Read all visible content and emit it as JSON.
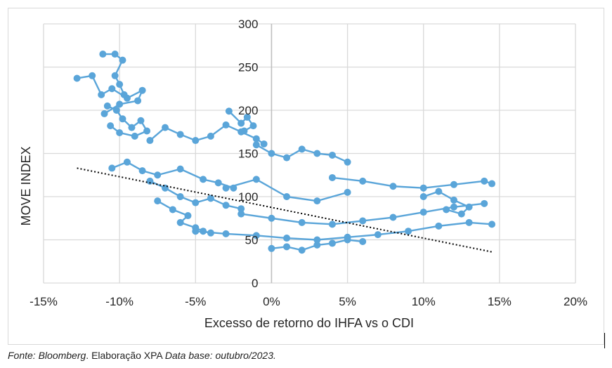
{
  "caption": {
    "source": "Fonte: Bloomberg",
    "dot": ".",
    "middle": " Elaboração XPA ",
    "date": "Data base: outubro/2023."
  },
  "chart_data": {
    "type": "scatter",
    "xlabel": "Excesso de retorno do IHFA vs o CDI",
    "ylabel": "MOVE INDEX",
    "xlim": [
      -0.15,
      0.2
    ],
    "ylim": [
      0,
      300
    ],
    "x_ticks": [
      -0.15,
      -0.1,
      -0.05,
      0,
      0.05,
      0.1,
      0.15,
      0.2
    ],
    "x_tick_labels": [
      "-15%",
      "-10%",
      "-5%",
      "0%",
      "5%",
      "10%",
      "15%",
      "20%"
    ],
    "y_ticks": [
      0,
      50,
      100,
      150,
      200,
      250,
      300
    ],
    "y_tick_labels": [
      "0",
      "50",
      "100",
      "150",
      "200",
      "250",
      "300"
    ],
    "grid": true,
    "color": "#5aa5d9",
    "line_connected": true,
    "trendline": {
      "type": "linear",
      "style": "dotted",
      "color": "#000000",
      "x": [
        -0.128,
        0.145
      ],
      "y": [
        133,
        36
      ]
    },
    "clusters": [
      {
        "x": [
          -0.128,
          -0.118,
          -0.112,
          -0.105,
          -0.095,
          -0.085,
          -0.088,
          -0.1,
          -0.11
        ],
        "y": [
          237,
          240,
          218,
          225,
          214,
          223,
          211,
          207,
          196
        ]
      },
      {
        "x": [
          -0.111,
          -0.103,
          -0.098,
          -0.103,
          -0.1,
          -0.097
        ],
        "y": [
          265,
          265,
          258,
          240,
          230,
          218
        ]
      },
      {
        "x": [
          -0.108,
          -0.102,
          -0.098,
          -0.092,
          -0.086,
          -0.082,
          -0.09,
          -0.1,
          -0.106
        ],
        "y": [
          205,
          200,
          190,
          180,
          188,
          176,
          170,
          174,
          182
        ]
      },
      {
        "x": [
          -0.08,
          -0.07,
          -0.06,
          -0.05,
          -0.04,
          -0.03,
          -0.02,
          -0.01,
          -0.005
        ],
        "y": [
          165,
          180,
          172,
          165,
          170,
          183,
          175,
          167,
          161
        ]
      },
      {
        "x": [
          -0.028,
          -0.02,
          -0.016,
          -0.012,
          -0.018
        ],
        "y": [
          199,
          185,
          192,
          182,
          176
        ]
      },
      {
        "x": [
          -0.105,
          -0.095,
          -0.085,
          -0.075,
          -0.06,
          -0.045,
          -0.035,
          -0.025
        ],
        "y": [
          133,
          140,
          130,
          125,
          132,
          120,
          116,
          110
        ]
      },
      {
        "x": [
          -0.08,
          -0.07,
          -0.06,
          -0.05,
          -0.04,
          -0.03,
          -0.02
        ],
        "y": [
          118,
          110,
          100,
          93,
          98,
          90,
          86
        ]
      },
      {
        "x": [
          -0.075,
          -0.065,
          -0.055,
          -0.06,
          -0.05,
          -0.045,
          -0.04
        ],
        "y": [
          95,
          85,
          78,
          70,
          64,
          60,
          58
        ]
      },
      {
        "x": [
          -0.05,
          -0.03,
          -0.01,
          0.01,
          0.03,
          0.05,
          0.07,
          0.09,
          0.11,
          0.13,
          0.145
        ],
        "y": [
          60,
          57,
          55,
          52,
          50,
          53,
          56,
          60,
          66,
          70,
          68
        ]
      },
      {
        "x": [
          -0.02,
          0.0,
          0.02,
          0.04,
          0.06,
          0.08,
          0.1,
          0.12,
          0.14
        ],
        "y": [
          80,
          75,
          70,
          68,
          72,
          76,
          82,
          88,
          92
        ]
      },
      {
        "x": [
          0.04,
          0.06,
          0.08,
          0.1,
          0.12,
          0.14,
          0.145
        ],
        "y": [
          122,
          118,
          112,
          110,
          114,
          118,
          115
        ]
      },
      {
        "x": [
          -0.01,
          0.0,
          0.01,
          0.02,
          0.03,
          0.04,
          0.05
        ],
        "y": [
          160,
          150,
          145,
          155,
          150,
          148,
          140
        ]
      },
      {
        "x": [
          0.0,
          0.01,
          0.02,
          0.03,
          0.04,
          0.05,
          0.06
        ],
        "y": [
          40,
          42,
          38,
          44,
          46,
          50,
          48
        ]
      },
      {
        "x": [
          -0.03,
          -0.01,
          0.01,
          0.03,
          0.05
        ],
        "y": [
          110,
          120,
          100,
          95,
          105
        ]
      },
      {
        "x": [
          0.1,
          0.11,
          0.12,
          0.13,
          0.125,
          0.115
        ],
        "y": [
          100,
          106,
          96,
          88,
          80,
          85
        ]
      }
    ]
  }
}
